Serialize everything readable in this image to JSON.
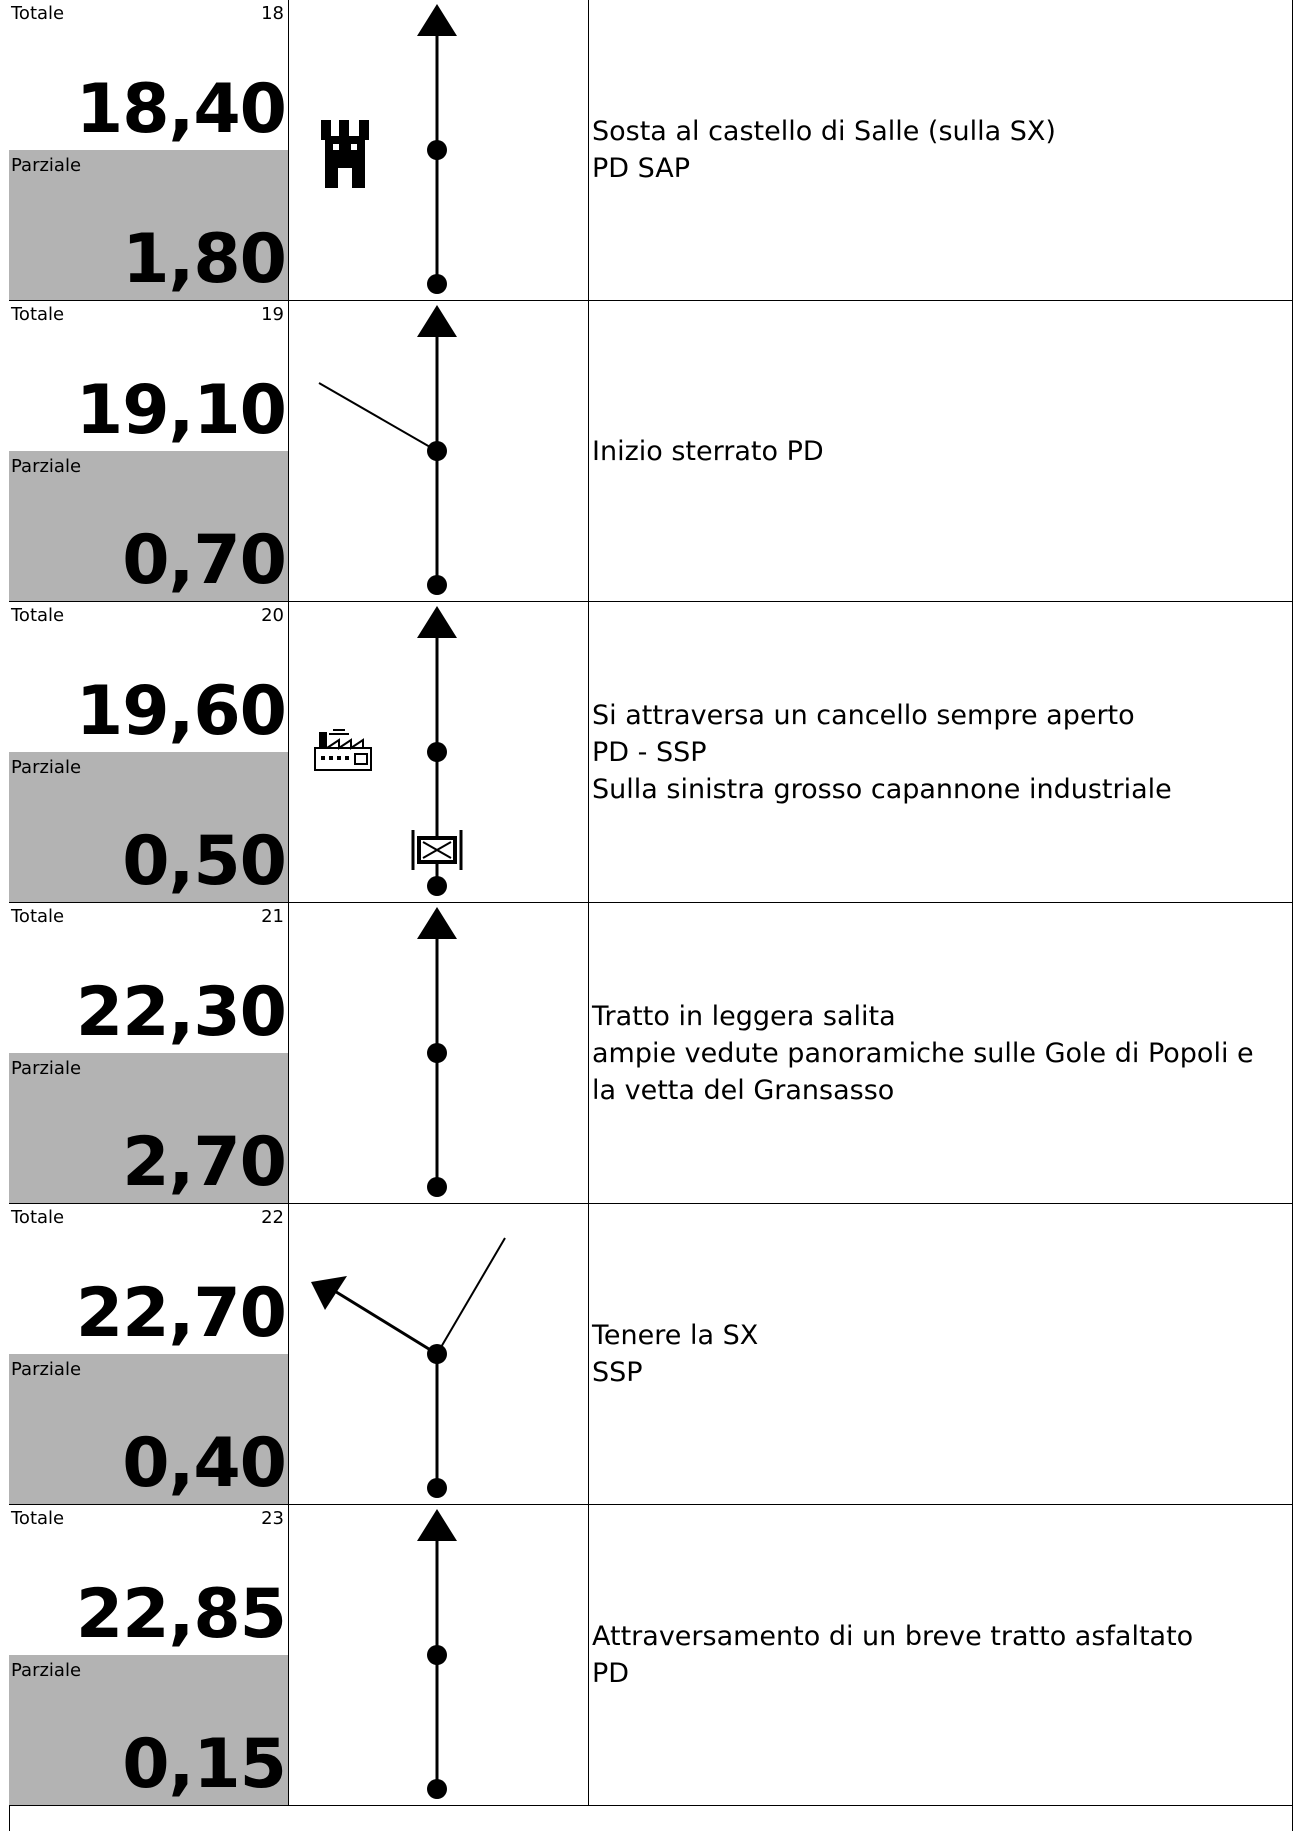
{
  "labels": {
    "totale": "Totale",
    "parziale": "Parziale"
  },
  "rows": [
    {
      "index": "18",
      "totale": "18,40",
      "parziale": "1,80",
      "description": [
        "Sosta al castello di Salle (sulla SX)",
        "PD SAP"
      ],
      "icons": [
        "castle-icon"
      ],
      "diagram": "straight"
    },
    {
      "index": "19",
      "totale": "19,10",
      "parziale": "0,70",
      "description": [
        "Inizio sterrato PD"
      ],
      "icons": [],
      "diagram": "straight-with-left-branch"
    },
    {
      "index": "20",
      "totale": "19,60",
      "parziale": "0,50",
      "description": [
        "Si attraversa un cancello sempre aperto",
        "PD - SSP",
        "Sulla sinistra grosso capannone industriale"
      ],
      "icons": [
        "factory-icon",
        "gate-icon"
      ],
      "diagram": "straight"
    },
    {
      "index": "21",
      "totale": "22,30",
      "parziale": "2,70",
      "description": [
        "Tratto in leggera salita",
        "ampie vedute panoramiche sulle Gole di Popoli e",
        "la vetta del Gransasso"
      ],
      "icons": [],
      "diagram": "straight"
    },
    {
      "index": "22",
      "totale": "22,70",
      "parziale": "0,40",
      "description": [
        "Tenere la SX",
        "SSP"
      ],
      "icons": [],
      "diagram": "keep-left-fork"
    },
    {
      "index": "23",
      "totale": "22,85",
      "parziale": "0,15",
      "description": [
        "Attraversamento di un breve tratto asfaltato",
        "PD"
      ],
      "icons": [],
      "diagram": "straight"
    }
  ],
  "colors": {
    "parziale_bg": "#b3b3b3",
    "line": "#000000"
  }
}
